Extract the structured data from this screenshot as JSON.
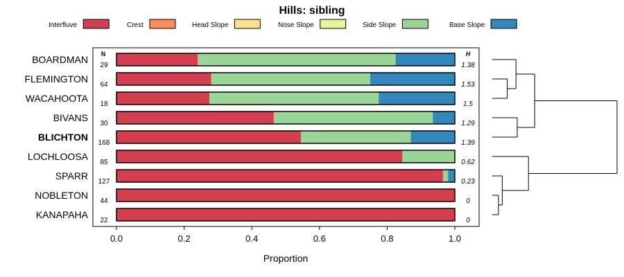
{
  "chart_data": {
    "type": "bar",
    "stacked": true,
    "orientation": "horizontal",
    "title": "Hills: sibling",
    "xlabel": "Proportion",
    "xlim": [
      0,
      1
    ],
    "x_ticks": [
      "0.0",
      "0.2",
      "0.4",
      "0.6",
      "0.8",
      "1.0"
    ],
    "n_header": "N",
    "h_header": "H",
    "legend": [
      {
        "name": "Interfluve",
        "color": "#d53e4f"
      },
      {
        "name": "Crest",
        "color": "#fc8d59"
      },
      {
        "name": "Head Slope",
        "color": "#fee08b"
      },
      {
        "name": "Nose Slope",
        "color": "#e6f598"
      },
      {
        "name": "Side Slope",
        "color": "#99d594"
      },
      {
        "name": "Base Slope",
        "color": "#3288bd"
      }
    ],
    "categories": [
      {
        "label": "BOARDMAN",
        "n": "29",
        "h": "1.38",
        "bold": false,
        "values": [
          0.24,
          0,
          0,
          0,
          0.585,
          0.175
        ]
      },
      {
        "label": "FLEMINGTON",
        "n": "64",
        "h": "1.53",
        "bold": false,
        "values": [
          0.28,
          0,
          0,
          0,
          0.47,
          0.25
        ]
      },
      {
        "label": "WACAHOOTA",
        "n": "18",
        "h": "1.5",
        "bold": false,
        "values": [
          0.275,
          0,
          0,
          0,
          0.5,
          0.225
        ]
      },
      {
        "label": "BIVANS",
        "n": "30",
        "h": "1.29",
        "bold": false,
        "values": [
          0.465,
          0,
          0,
          0,
          0.47,
          0.065
        ]
      },
      {
        "label": "BLICHTON",
        "n": "168",
        "h": "1.39",
        "bold": true,
        "values": [
          0.545,
          0,
          0,
          0,
          0.325,
          0.13
        ]
      },
      {
        "label": "LOCHLOOSA",
        "n": "85",
        "h": "0.62",
        "bold": false,
        "values": [
          0.845,
          0,
          0,
          0,
          0.155,
          0
        ]
      },
      {
        "label": "SPARR",
        "n": "127",
        "h": "0.23",
        "bold": false,
        "values": [
          0.965,
          0,
          0,
          0,
          0.015,
          0.02
        ]
      },
      {
        "label": "NOBLETON",
        "n": "44",
        "h": "0",
        "bold": false,
        "values": [
          1,
          0,
          0,
          0,
          0,
          0
        ]
      },
      {
        "label": "KANAPAHA",
        "n": "22",
        "h": "0",
        "bold": false,
        "values": [
          1,
          0,
          0,
          0,
          0,
          0
        ]
      }
    ],
    "dendrogram_merges": [
      {
        "left": "FLEMINGTON",
        "right": "WACAHOOTA",
        "height": 0.12
      },
      {
        "left": "BOARDMAN",
        "right": "FLEMINGTON+WACAHOOTA",
        "height": 0.19
      },
      {
        "left": "BIVANS",
        "right": "BLICHTON",
        "height": 0.2
      },
      {
        "left": "BOARDMAN+FLEMINGTON+WACAHOOTA",
        "right": "BIVANS+BLICHTON",
        "height": 0.34
      },
      {
        "left": "NOBLETON",
        "right": "KANAPAHA",
        "height": 0.05
      },
      {
        "left": "SPARR",
        "right": "NOBLETON+KANAPAHA",
        "height": 0.08
      },
      {
        "left": "LOCHLOOSA",
        "right": "SPARR+NOBLETON+KANAPAHA",
        "height": 0.29
      },
      {
        "left": "upper",
        "right": "lower",
        "height": 1.0
      }
    ]
  }
}
